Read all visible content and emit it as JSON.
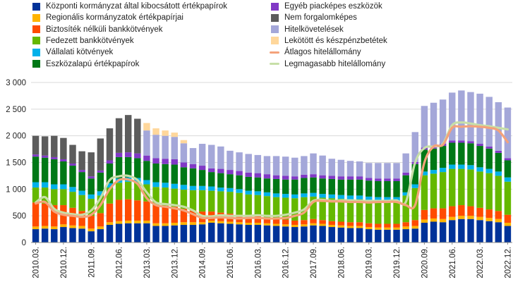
{
  "chart_data": {
    "type": "bar",
    "stacked": true,
    "title": "",
    "xlabel": "",
    "ylabel": "",
    "ylim": [
      0,
      3000
    ],
    "yticks": [
      0,
      500,
      1000,
      1500,
      2000,
      2500,
      3000
    ],
    "ytick_labels": [
      "0",
      "500",
      "1 000",
      "1 500",
      "2 000",
      "2 500",
      "3 000"
    ],
    "x_tick_labels": [
      "2010.03.",
      "2010.12.",
      "2011.09.",
      "2012.06.",
      "2013.03.",
      "2013.12.",
      "2014.09.",
      "2015.06.",
      "2016.03.",
      "2016.12.",
      "2017.09.",
      "2018.06.",
      "2019.03.",
      "2019.12.",
      "2020.09.",
      "2021.06.",
      "2022.03.",
      "2022.12."
    ],
    "x_tick_every": 3,
    "categories": [
      "2010.03.",
      "2010.06.",
      "2010.09.",
      "2010.12.",
      "2011.03.",
      "2011.06.",
      "2011.09.",
      "2011.12.",
      "2012.03.",
      "2012.06.",
      "2012.09.",
      "2012.12.",
      "2013.03.",
      "2013.06.",
      "2013.09.",
      "2013.12.",
      "2014.03.",
      "2014.06.",
      "2014.09.",
      "2014.12.",
      "2015.03.",
      "2015.06.",
      "2015.09.",
      "2015.12.",
      "2016.03.",
      "2016.06.",
      "2016.09.",
      "2016.12.",
      "2017.03.",
      "2017.06.",
      "2017.09.",
      "2017.12.",
      "2018.03.",
      "2018.06.",
      "2018.09.",
      "2018.12.",
      "2019.03.",
      "2019.06.",
      "2019.09.",
      "2019.12.",
      "2020.03.",
      "2020.06.",
      "2020.09.",
      "2020.12.",
      "2021.03.",
      "2021.06.",
      "2021.09.",
      "2021.12.",
      "2022.03.",
      "2022.06.",
      "2022.09.",
      "2022.12."
    ],
    "series": [
      {
        "name": "Központi kormányzat által kibocsátott értékpapírok",
        "color": "#003299",
        "values": [
          250,
          260,
          250,
          290,
          270,
          260,
          210,
          250,
          330,
          350,
          360,
          360,
          360,
          310,
          310,
          320,
          330,
          330,
          340,
          370,
          360,
          350,
          340,
          330,
          330,
          320,
          310,
          300,
          290,
          300,
          320,
          310,
          290,
          280,
          270,
          270,
          250,
          240,
          240,
          240,
          250,
          260,
          370,
          390,
          380,
          420,
          440,
          440,
          420,
          400,
          380,
          310
        ]
      },
      {
        "name": "Regionális kormányzatok értékpapírjai",
        "color": "#FFB400",
        "values": [
          50,
          50,
          50,
          50,
          50,
          50,
          50,
          50,
          50,
          50,
          50,
          50,
          50,
          50,
          50,
          50,
          50,
          50,
          40,
          40,
          40,
          40,
          40,
          40,
          40,
          40,
          40,
          40,
          40,
          40,
          40,
          40,
          40,
          40,
          40,
          40,
          40,
          40,
          40,
          40,
          50,
          50,
          60,
          60,
          60,
          60,
          60,
          60,
          60,
          60,
          60,
          60
        ]
      },
      {
        "name": "Biztosíték nélküli bankkötvények",
        "color": "#FF4B00",
        "values": [
          450,
          420,
          400,
          360,
          330,
          280,
          240,
          250,
          350,
          400,
          400,
          380,
          360,
          340,
          330,
          300,
          250,
          220,
          200,
          170,
          160,
          150,
          140,
          130,
          120,
          110,
          100,
          90,
          80,
          80,
          80,
          70,
          70,
          70,
          70,
          70,
          70,
          70,
          70,
          70,
          80,
          110,
          180,
          190,
          200,
          200,
          200,
          180,
          170,
          160,
          150,
          150
        ]
      },
      {
        "name": "Fedezett bankkötvények",
        "color": "#65B800",
        "values": [
          280,
          300,
          300,
          300,
          300,
          300,
          320,
          330,
          300,
          320,
          330,
          340,
          320,
          340,
          340,
          340,
          360,
          380,
          400,
          390,
          400,
          410,
          410,
          400,
          400,
          400,
          400,
          410,
          420,
          430,
          420,
          420,
          430,
          430,
          430,
          430,
          440,
          440,
          440,
          440,
          500,
          600,
          650,
          650,
          680,
          700,
          680,
          690,
          680,
          680,
          660,
          620
        ]
      },
      {
        "name": "Vállalati kötvények",
        "color": "#00B1EA",
        "values": [
          100,
          100,
          90,
          90,
          90,
          80,
          80,
          80,
          80,
          80,
          80,
          80,
          80,
          90,
          90,
          90,
          90,
          80,
          80,
          80,
          70,
          70,
          70,
          70,
          70,
          70,
          70,
          70,
          70,
          70,
          70,
          70,
          70,
          70,
          70,
          70,
          60,
          60,
          60,
          60,
          60,
          70,
          70,
          70,
          80,
          80,
          80,
          80,
          80,
          80,
          80,
          80
        ]
      },
      {
        "name": "Eszközalapú értékpapírok",
        "color": "#007816",
        "values": [
          480,
          460,
          470,
          430,
          400,
          350,
          300,
          350,
          370,
          400,
          380,
          370,
          360,
          350,
          350,
          360,
          330,
          330,
          300,
          270,
          270,
          260,
          260,
          260,
          260,
          260,
          270,
          270,
          280,
          290,
          290,
          290,
          290,
          290,
          300,
          300,
          300,
          300,
          300,
          300,
          320,
          380,
          410,
          400,
          410,
          410,
          410,
          410,
          400,
          380,
          350,
          320
        ]
      },
      {
        "name": "Egyéb piacképes eszközök",
        "color": "#8139C6",
        "values": [
          40,
          40,
          40,
          40,
          40,
          40,
          40,
          40,
          60,
          80,
          90,
          90,
          100,
          100,
          100,
          100,
          90,
          80,
          80,
          70,
          80,
          80,
          80,
          80,
          80,
          80,
          70,
          70,
          60,
          60,
          60,
          60,
          60,
          60,
          60,
          60,
          50,
          50,
          50,
          50,
          50,
          40,
          40,
          40,
          40,
          40,
          40,
          40,
          40,
          40,
          40,
          40
        ]
      },
      {
        "name": "Nem forgalomképes",
        "color": "#5C5C5C",
        "values": [
          350,
          360,
          400,
          400,
          350,
          350,
          450,
          600,
          600,
          650,
          700,
          650,
          0,
          0,
          0,
          0,
          0,
          0,
          0,
          0,
          0,
          0,
          0,
          0,
          0,
          0,
          0,
          0,
          0,
          0,
          0,
          0,
          0,
          0,
          0,
          0,
          0,
          0,
          0,
          0,
          0,
          0,
          0,
          0,
          0,
          0,
          0,
          0,
          0,
          0,
          0,
          0
        ]
      },
      {
        "name": "Hitelkövetelések",
        "color": "#A4A7D9",
        "values": [
          0,
          0,
          0,
          0,
          0,
          0,
          0,
          0,
          0,
          0,
          0,
          0,
          470,
          440,
          430,
          420,
          360,
          300,
          410,
          440,
          420,
          360,
          350,
          350,
          340,
          340,
          360,
          360,
          350,
          350,
          390,
          370,
          320,
          310,
          290,
          280,
          280,
          290,
          290,
          290,
          360,
          560,
          780,
          820,
          830,
          900,
          940,
          920,
          940,
          930,
          910,
          950
        ]
      },
      {
        "name": "Lekötött és készpénzbetétek",
        "color": "#FFD79B",
        "values": [
          0,
          0,
          0,
          0,
          0,
          0,
          0,
          0,
          0,
          0,
          0,
          0,
          140,
          120,
          100,
          80,
          60,
          0,
          0,
          0,
          0,
          0,
          0,
          0,
          0,
          0,
          0,
          0,
          0,
          0,
          0,
          0,
          0,
          0,
          0,
          0,
          0,
          0,
          0,
          0,
          0,
          0,
          0,
          0,
          0,
          0,
          0,
          0,
          0,
          0,
          0,
          0
        ]
      }
    ],
    "lines": [
      {
        "name": "Átlagos hitelállomány",
        "color": "#F4A27A",
        "values": [
          730,
          760,
          580,
          520,
          500,
          480,
          520,
          700,
          1000,
          1170,
          1180,
          1100,
          830,
          700,
          670,
          640,
          600,
          530,
          460,
          460,
          470,
          460,
          450,
          460,
          460,
          450,
          450,
          460,
          500,
          560,
          760,
          780,
          770,
          770,
          760,
          760,
          750,
          760,
          760,
          760,
          700,
          700,
          1500,
          1800,
          1830,
          2150,
          2170,
          2180,
          2170,
          2150,
          2100,
          1880
        ]
      },
      {
        "name": "Legmagasabb hitelállomány",
        "color": "#C7DFA8",
        "values": [
          750,
          850,
          630,
          560,
          530,
          520,
          600,
          830,
          1170,
          1240,
          1250,
          1170,
          940,
          750,
          720,
          700,
          670,
          600,
          500,
          490,
          510,
          500,
          500,
          500,
          510,
          500,
          500,
          520,
          560,
          620,
          780,
          800,
          780,
          790,
          790,
          780,
          780,
          780,
          780,
          790,
          760,
          1500,
          1770,
          1800,
          1850,
          2200,
          2250,
          2230,
          2200,
          2180,
          2150,
          2120
        ]
      }
    ]
  },
  "legend": {
    "col1": [
      {
        "label": "Központi kormányzat által kibocsátott értékpapírok",
        "color": "#003299",
        "kind": "box"
      },
      {
        "label": "Regionális kormányzatok értékpapírjai",
        "color": "#FFB400",
        "kind": "box"
      },
      {
        "label": "Biztosíték nélküli bankkötvények",
        "color": "#FF4B00",
        "kind": "box"
      },
      {
        "label": "Fedezett bankkötvények",
        "color": "#65B800",
        "kind": "box"
      },
      {
        "label": "Vállalati kötvények",
        "color": "#00B1EA",
        "kind": "box"
      },
      {
        "label": "Eszközalapú értékpapírok",
        "color": "#007816",
        "kind": "box"
      }
    ],
    "col2": [
      {
        "label": "Egyéb piacképes eszközök",
        "color": "#8139C6",
        "kind": "box"
      },
      {
        "label": "Nem forgalomképes",
        "color": "#5C5C5C",
        "kind": "box"
      },
      {
        "label": "Hitelkövetelések",
        "color": "#A4A7D9",
        "kind": "box"
      },
      {
        "label": "Lekötött és készpénzbetétek",
        "color": "#FFD79B",
        "kind": "box"
      },
      {
        "label": "Átlagos hitelállomány",
        "color": "#F4A27A",
        "kind": "line"
      },
      {
        "label": "Legmagasabb hitelállomány",
        "color": "#C7DFA8",
        "kind": "line"
      }
    ]
  }
}
